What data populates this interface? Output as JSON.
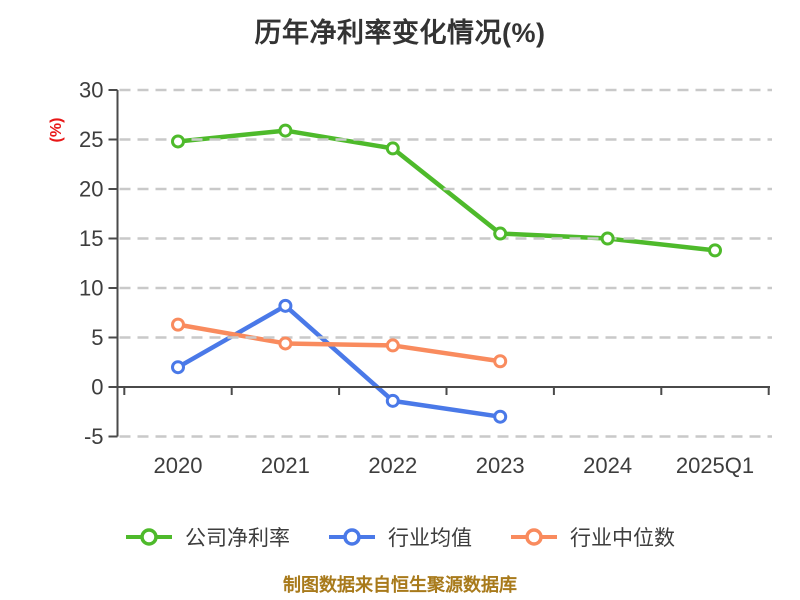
{
  "chart_data": {
    "type": "line",
    "title": "历年净利率变化情况(%)",
    "ylabel": "(%)",
    "categories": [
      "2020",
      "2021",
      "2022",
      "2023",
      "2024",
      "2025Q1"
    ],
    "series": [
      {
        "name": "公司净利率",
        "color": "#4eba2b",
        "values": [
          24.8,
          25.9,
          24.1,
          15.5,
          15.0,
          13.8
        ]
      },
      {
        "name": "行业均值",
        "color": "#4a79e8",
        "values": [
          2.0,
          8.2,
          -1.4,
          -3.0,
          null,
          null
        ]
      },
      {
        "name": "行业中位数",
        "color": "#f98b5e",
        "values": [
          6.3,
          4.4,
          4.2,
          2.6,
          null,
          null
        ]
      }
    ],
    "ylim": [
      -5,
      30
    ],
    "ytick_step": 5,
    "grid": "horizontal-dashed",
    "legend_position": "bottom",
    "marker": "open-circle",
    "colors": {
      "title": "#333333",
      "tick_label": "#3d3d3d",
      "axis": "#4a4a4a",
      "grid": "#c9c9c9",
      "ylabel": "#e81717",
      "marker_fill": "#ffffff"
    }
  },
  "footer": {
    "text": "制图数据来自恒生聚源数据库",
    "color": "#a87a1b"
  }
}
